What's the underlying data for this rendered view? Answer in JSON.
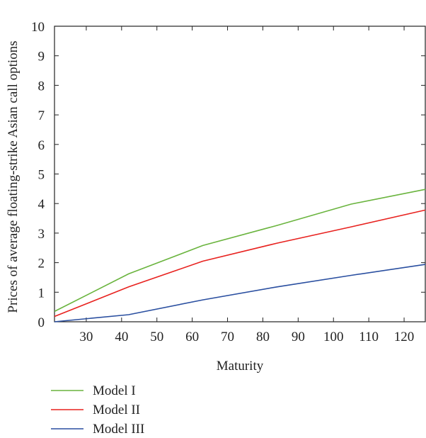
{
  "chart_data": {
    "type": "line",
    "title": "",
    "xlabel": "Maturity",
    "ylabel": "Prices of average floating-strike Asian call options",
    "xlim": [
      21,
      126
    ],
    "ylim": [
      0,
      10
    ],
    "xticks": [
      30,
      40,
      50,
      60,
      70,
      80,
      90,
      100,
      110,
      120
    ],
    "yticks": [
      0,
      1,
      2,
      3,
      4,
      5,
      6,
      7,
      8,
      9,
      10
    ],
    "grid": false,
    "legend": "bottom-left",
    "x": [
      21,
      42,
      63,
      84,
      105,
      126
    ],
    "series": [
      {
        "name": "Model I",
        "color": "#6ab43e",
        "values": [
          0.35,
          1.62,
          2.58,
          3.26,
          3.98,
          4.48
        ]
      },
      {
        "name": "Model II",
        "color": "#e8221f",
        "values": [
          0.18,
          1.18,
          2.05,
          2.66,
          3.21,
          3.78
        ]
      },
      {
        "name": "Model III",
        "color": "#2a4fa0",
        "values": [
          0.0,
          0.24,
          0.74,
          1.18,
          1.57,
          1.94
        ]
      }
    ]
  }
}
